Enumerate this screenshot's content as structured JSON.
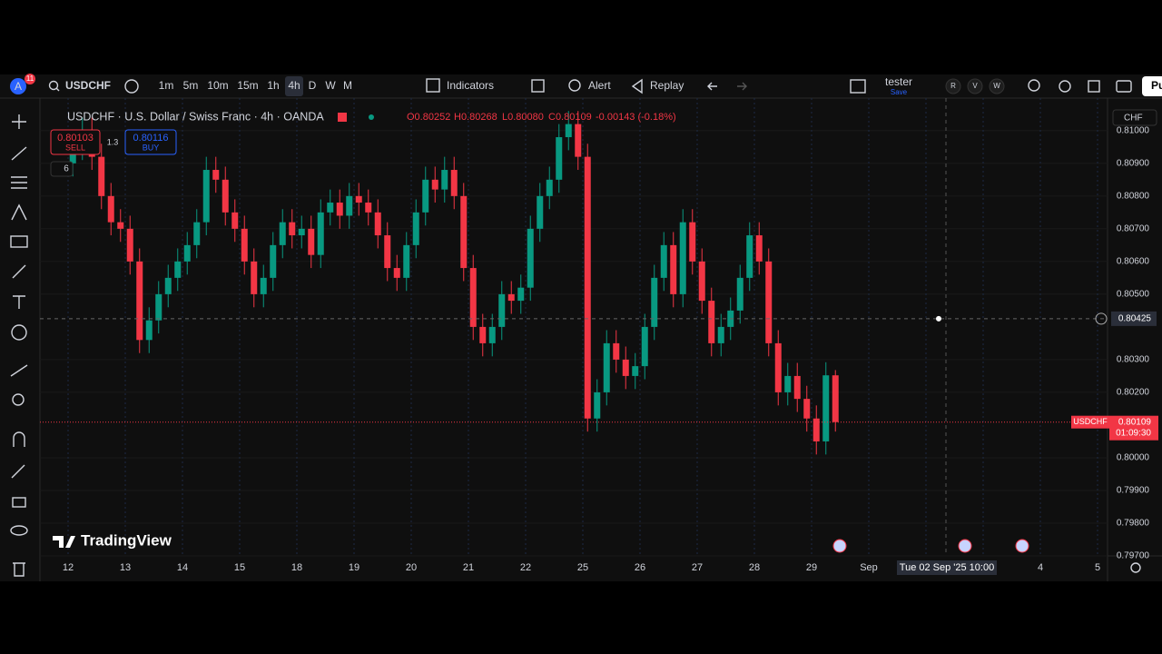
{
  "toolbar": {
    "avatar": "A",
    "badge": "11",
    "symbol": "USDCHF",
    "intervals": [
      "1m",
      "5m",
      "10m",
      "15m",
      "1h",
      "4h",
      "D",
      "W",
      "M"
    ],
    "indicators": "Indicators",
    "alert": "Alert",
    "replay": "Replay",
    "layout_name": "tester",
    "layout_status": "Save",
    "circles": [
      "R",
      "V",
      "W"
    ],
    "publish": "Pu"
  },
  "legend": {
    "title": "USDCHF · U.S. Dollar / Swiss Franc · 4h · OANDA",
    "ohlc": [
      "O0.80252",
      "H0.80268",
      "L0.80080",
      "C0.80109",
      "-0.00143 (-0.18%)"
    ],
    "sell_price": "0.80103",
    "sell": "SELL",
    "spread": "1.3",
    "buy_price": "0.80116",
    "buy": "BUY",
    "indicator_count": "6"
  },
  "price_axis": {
    "currency": "CHF",
    "tag_symbol": "USDCHF",
    "tag_price": "0.80109",
    "tag_countdown": "01:09:30",
    "crosshair_price": "0.80425"
  },
  "time_axis": {
    "crosshair_time": "Tue 02 Sep '25 10:00"
  },
  "watermark": "TradingView",
  "chart_data": {
    "type": "candlestick",
    "open": [
      0.809,
      0.8095,
      0.81,
      0.8092,
      0.808,
      0.8072,
      0.807,
      0.806,
      0.8036,
      0.8042,
      0.805,
      0.8055,
      0.806,
      0.8065,
      0.8072,
      0.8088,
      0.8085,
      0.8075,
      0.807,
      0.806,
      0.805,
      0.8055,
      0.8065,
      0.8072,
      0.8068,
      0.807,
      0.8062,
      0.8075,
      0.8078,
      0.8074,
      0.808,
      0.8078,
      0.8075,
      0.8068,
      0.8058,
      0.8055,
      0.8065,
      0.8075,
      0.8085,
      0.8082,
      0.8088,
      0.808,
      0.8058,
      0.804,
      0.8035,
      0.804,
      0.805,
      0.8048,
      0.8052,
      0.807,
      0.808,
      0.8085,
      0.8098,
      0.8102,
      0.8092,
      0.8012,
      0.802,
      0.8035,
      0.803,
      0.8025,
      0.8028,
      0.804,
      0.8055,
      0.8065,
      0.805,
      0.8072,
      0.806,
      0.8048,
      0.8035,
      0.804,
      0.8045,
      0.8055,
      0.8068,
      0.806,
      0.8035,
      0.802,
      0.8025,
      0.8018,
      0.8012,
      0.8005,
      0.80252
    ],
    "high": [
      0.8099,
      0.8104,
      0.8104,
      0.8096,
      0.8084,
      0.8076,
      0.8074,
      0.8064,
      0.8046,
      0.8054,
      0.8059,
      0.8064,
      0.8069,
      0.8076,
      0.8092,
      0.8092,
      0.8089,
      0.8079,
      0.8074,
      0.8064,
      0.8059,
      0.8069,
      0.8076,
      0.8076,
      0.8074,
      0.8074,
      0.8079,
      0.8082,
      0.8082,
      0.8084,
      0.8084,
      0.8082,
      0.8079,
      0.8072,
      0.8062,
      0.8069,
      0.8079,
      0.8089,
      0.8089,
      0.8092,
      0.8092,
      0.8084,
      0.8062,
      0.8044,
      0.8044,
      0.8054,
      0.8054,
      0.8056,
      0.8074,
      0.8084,
      0.8089,
      0.8102,
      0.8106,
      0.8106,
      0.8096,
      0.8024,
      0.8039,
      0.8039,
      0.8034,
      0.8032,
      0.8044,
      0.8059,
      0.8069,
      0.8069,
      0.8076,
      0.8076,
      0.8064,
      0.8052,
      0.8044,
      0.8049,
      0.8059,
      0.8072,
      0.8072,
      0.8064,
      0.8039,
      0.8029,
      0.8029,
      0.8022,
      0.8016,
      0.80292,
      0.80268
    ],
    "low": [
      0.8086,
      0.8091,
      0.8088,
      0.8076,
      0.8068,
      0.8066,
      0.8056,
      0.8032,
      0.8032,
      0.8038,
      0.8046,
      0.8051,
      0.8056,
      0.8061,
      0.8068,
      0.8081,
      0.8071,
      0.8066,
      0.8056,
      0.8046,
      0.8046,
      0.8051,
      0.8061,
      0.8064,
      0.8064,
      0.8058,
      0.8058,
      0.8071,
      0.807,
      0.807,
      0.8074,
      0.8071,
      0.8064,
      0.8054,
      0.8051,
      0.8051,
      0.8061,
      0.8071,
      0.8078,
      0.8078,
      0.8076,
      0.8054,
      0.8036,
      0.8031,
      0.8031,
      0.8036,
      0.8044,
      0.8044,
      0.8048,
      0.8066,
      0.8076,
      0.8081,
      0.8094,
      0.8088,
      0.8008,
      0.8008,
      0.8016,
      0.8026,
      0.8021,
      0.8021,
      0.8024,
      0.8036,
      0.8051,
      0.8046,
      0.8046,
      0.8056,
      0.8044,
      0.8031,
      0.8031,
      0.8036,
      0.8041,
      0.8051,
      0.8056,
      0.8031,
      0.8016,
      0.8016,
      0.8014,
      0.8008,
      0.8001,
      0.8001,
      0.8008
    ],
    "close": [
      0.8095,
      0.81,
      0.8092,
      0.808,
      0.8072,
      0.807,
      0.806,
      0.8036,
      0.8042,
      0.805,
      0.8055,
      0.806,
      0.8065,
      0.8072,
      0.8088,
      0.8085,
      0.8075,
      0.807,
      0.806,
      0.805,
      0.8055,
      0.8065,
      0.8072,
      0.8068,
      0.807,
      0.8062,
      0.8075,
      0.8078,
      0.8074,
      0.808,
      0.8078,
      0.8075,
      0.8068,
      0.8058,
      0.8055,
      0.8065,
      0.8075,
      0.8085,
      0.8082,
      0.8088,
      0.808,
      0.8058,
      0.804,
      0.8035,
      0.804,
      0.805,
      0.8048,
      0.8052,
      0.807,
      0.808,
      0.8085,
      0.8098,
      0.8102,
      0.8092,
      0.8012,
      0.802,
      0.8035,
      0.803,
      0.8025,
      0.8028,
      0.804,
      0.8055,
      0.8065,
      0.805,
      0.8072,
      0.806,
      0.8048,
      0.8035,
      0.804,
      0.8045,
      0.8055,
      0.8068,
      0.806,
      0.8035,
      0.802,
      0.8025,
      0.8018,
      0.8012,
      0.8005,
      0.80252,
      0.80109
    ],
    "x_labels": [
      "12",
      "13",
      "14",
      "15",
      "18",
      "19",
      "20",
      "21",
      "22",
      "25",
      "26",
      "27",
      "28",
      "29",
      "Sep",
      null,
      null,
      "4",
      "5"
    ],
    "up_color": "#089981",
    "down_color": "#f23645",
    "ylim": [
      0.797,
      0.8108
    ],
    "yticks": [
      {
        "value": 0.81,
        "label": "0.81000"
      },
      {
        "value": 0.809,
        "label": "0.80900"
      },
      {
        "value": 0.808,
        "label": "0.80800"
      },
      {
        "value": 0.807,
        "label": "0.80700"
      },
      {
        "value": 0.806,
        "label": "0.80600"
      },
      {
        "value": 0.805,
        "label": "0.80500"
      },
      {
        "value": 0.803,
        "label": "0.80300"
      },
      {
        "value": 0.802,
        "label": "0.80200"
      },
      {
        "value": 0.8,
        "label": "0.80000"
      },
      {
        "value": 0.799,
        "label": "0.79900"
      },
      {
        "value": 0.798,
        "label": "0.79800"
      },
      {
        "value": 0.797,
        "label": "0.79700"
      }
    ],
    "crosshair_price_value": 0.80425,
    "last_price_value": 0.80109
  }
}
